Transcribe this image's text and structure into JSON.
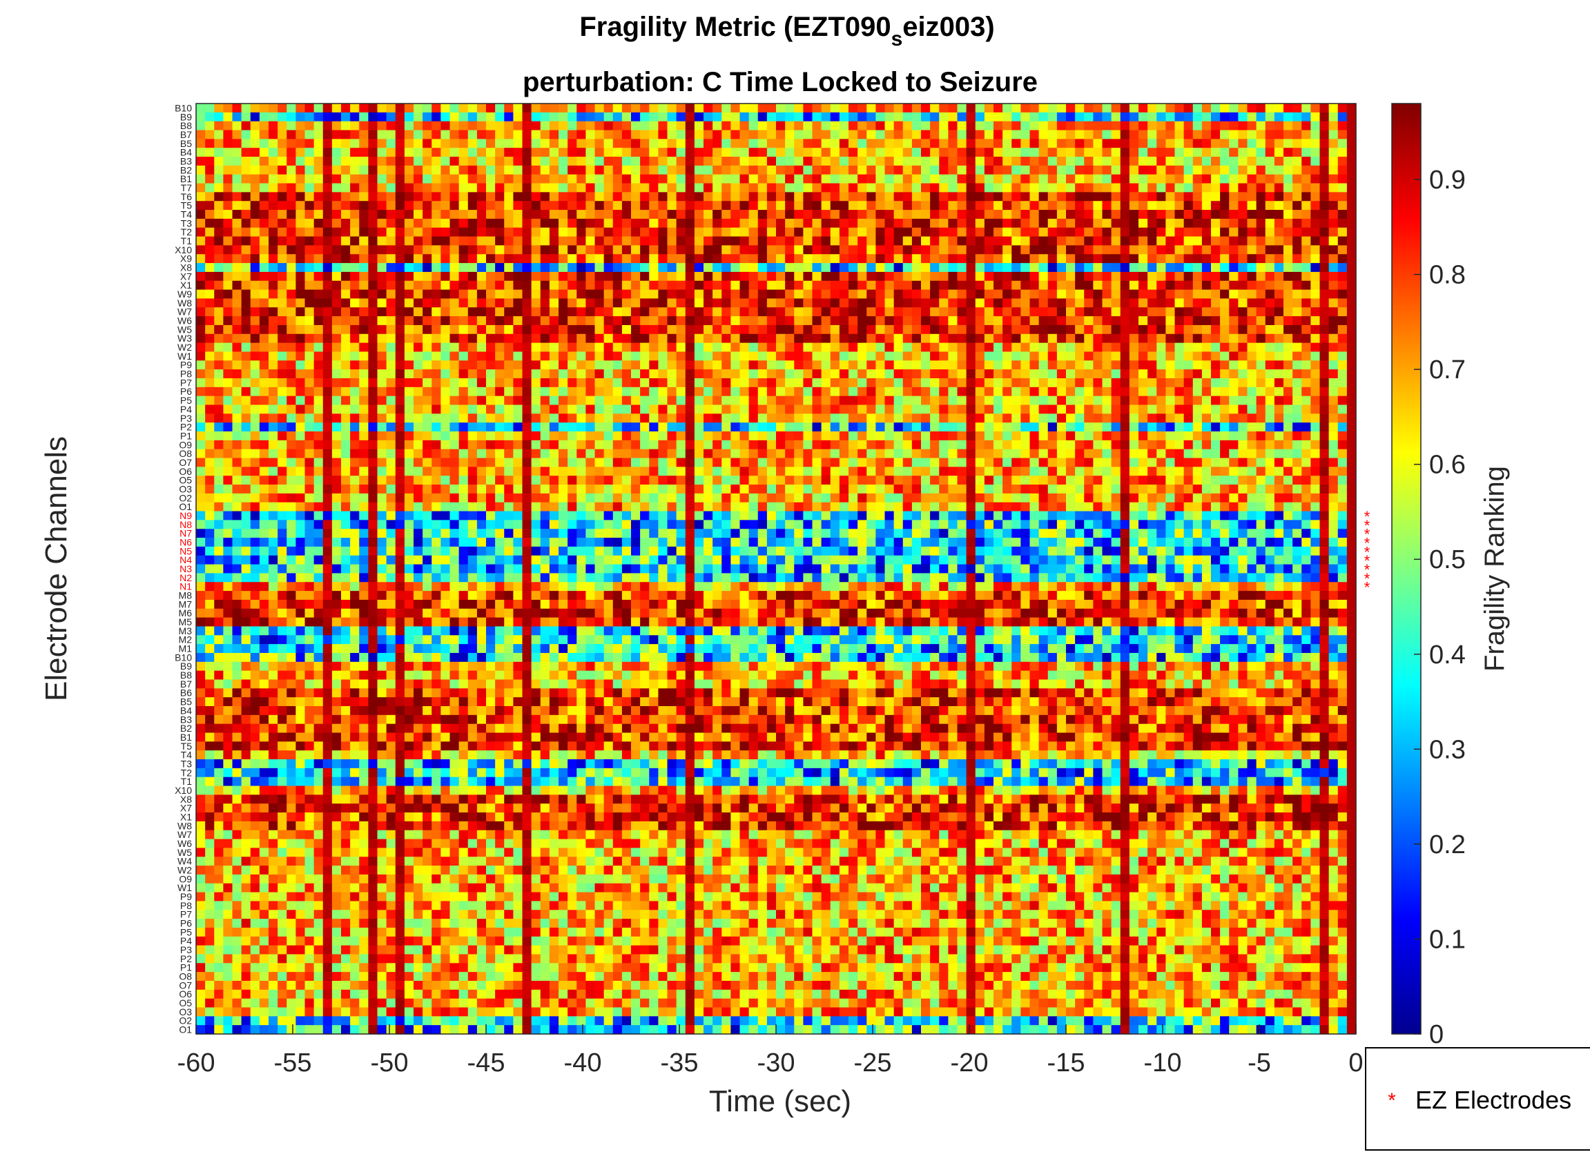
{
  "chart_data": {
    "type": "heatmap",
    "title": "Fragility Metric (EZT090",
    "title_subscript": "s",
    "title_suffix": "eiz003)",
    "subtitle": "perturbation: C Time Locked to Seizure",
    "xlabel": "Time (sec)",
    "ylabel": "Electrode Channels",
    "colorbar_label": "Fragility Ranking",
    "colormap": "jet",
    "xlim": [
      -60,
      0
    ],
    "clim": [
      0,
      0.98
    ],
    "x_ticks": [
      -60,
      -55,
      -50,
      -45,
      -40,
      -35,
      -30,
      -25,
      -20,
      -15,
      -10,
      -5,
      0
    ],
    "x_tick_labels": [
      "-60",
      "-55",
      "-50",
      "-45",
      "-40",
      "-35",
      "-30",
      "-25",
      "-20",
      "-15",
      "-10",
      "-5",
      "0"
    ],
    "colorbar_ticks": [
      0,
      0.1,
      0.2,
      0.3,
      0.4,
      0.5,
      0.6,
      0.7,
      0.8,
      0.9
    ],
    "colorbar_tick_labels": [
      "0",
      "0.1",
      "0.2",
      "0.3",
      "0.4",
      "0.5",
      "0.6",
      "0.7",
      "0.8",
      "0.9"
    ],
    "channels_top_to_bottom": [
      "B10",
      "B9",
      "B8",
      "B7",
      "B5",
      "B4",
      "B3",
      "B2",
      "B1",
      "T7",
      "T6",
      "T5",
      "T4",
      "T3",
      "T2",
      "T1",
      "X10",
      "X9",
      "X8",
      "X7",
      "X1",
      "W9",
      "W8",
      "W7",
      "W6",
      "W5",
      "W3",
      "W2",
      "W1",
      "P9",
      "P8",
      "P7",
      "P6",
      "P5",
      "P4",
      "P3",
      "P2",
      "P1",
      "O9",
      "O8",
      "O7",
      "O6",
      "O5",
      "O3",
      "O2",
      "O1",
      "N9",
      "N8",
      "N7",
      "N6",
      "N5",
      "N4",
      "N3",
      "N2",
      "N1",
      "M8",
      "M7",
      "M6",
      "M5",
      "M3",
      "M2",
      "M1",
      "B10",
      "B9",
      "B8",
      "B7",
      "B6",
      "B5",
      "B4",
      "B3",
      "B2",
      "B1",
      "T5",
      "T4",
      "T3",
      "T2",
      "T1",
      "X10",
      "X8",
      "X7",
      "X1",
      "W8",
      "W7",
      "W6",
      "W5",
      "W4",
      "W2",
      "O9",
      "W1",
      "P9",
      "P8",
      "P7",
      "P6",
      "P5",
      "P4",
      "P3",
      "P2",
      "P1",
      "O8",
      "O7",
      "O6",
      "O5",
      "O3",
      "O2",
      "O1"
    ],
    "ez_channels": [
      "N9",
      "N8",
      "N7",
      "N6",
      "N5",
      "N4",
      "N3",
      "N2",
      "N1"
    ],
    "ez_marker": "*",
    "ez_color": "#ff0000",
    "n_time_windows": 128,
    "row_profiles": {
      "high_rows": [
        10,
        11,
        12,
        13,
        14,
        15,
        16,
        17,
        19,
        20,
        21,
        22,
        23,
        24,
        25,
        26,
        55,
        56,
        57,
        58,
        66,
        67,
        68,
        69,
        70,
        71,
        72,
        78,
        79,
        80,
        81
      ],
      "low_rows": [
        1,
        18,
        36,
        46,
        47,
        48,
        49,
        50,
        51,
        52,
        53,
        59,
        60,
        61,
        62,
        74,
        75,
        76,
        103,
        104,
        105,
        106,
        107
      ]
    },
    "bright_columns_sec": [
      -53.5,
      -51,
      -49.5,
      -43,
      -34.5,
      -20,
      -12,
      -2
    ]
  },
  "legend": {
    "entry": "EZ Electrodes",
    "marker": "*",
    "location": "southeastoutside"
  }
}
